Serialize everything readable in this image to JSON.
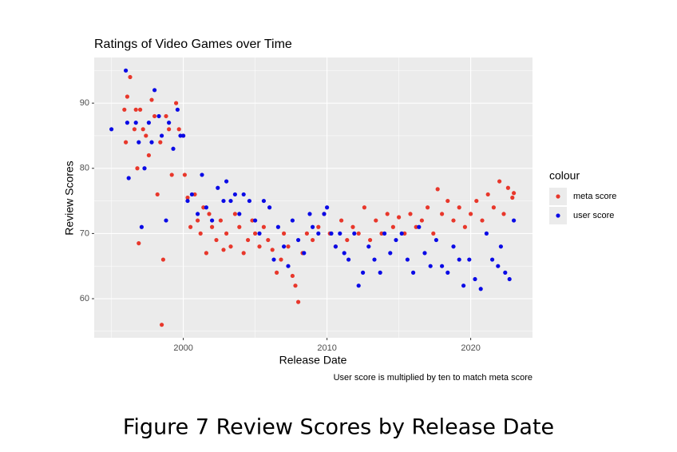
{
  "chart_data": {
    "type": "scatter",
    "title": "Ratings of Video Games over Time",
    "x_label": "Release Date",
    "y_label": "Review Scores",
    "caption": "User score is multiplied by ten to match meta score",
    "legend_title": "colour",
    "legend_position": "right",
    "grid": true,
    "xlim": [
      1993.8,
      2024.3
    ],
    "ylim": [
      54,
      97
    ],
    "xticks": [
      2000,
      2010,
      2020
    ],
    "yticks": [
      60,
      70,
      80,
      90
    ],
    "series": [
      {
        "name": "meta score",
        "color": "#e8372b",
        "x": [
          1995.9,
          1996.0,
          1996.1,
          1996.3,
          1996.6,
          1996.7,
          1996.8,
          1996.9,
          1997.0,
          1997.2,
          1997.4,
          1997.6,
          1997.8,
          1998.0,
          1998.2,
          1998.4,
          1998.5,
          1998.6,
          1998.8,
          1999.0,
          1999.2,
          1999.5,
          1999.7,
          2000.0,
          2000.1,
          2000.3,
          2000.5,
          2000.8,
          2001.0,
          2001.2,
          2001.4,
          2001.6,
          2001.8,
          2002.0,
          2002.3,
          2002.6,
          2002.8,
          2003.0,
          2003.3,
          2003.6,
          2003.9,
          2004.2,
          2004.5,
          2004.8,
          2005.0,
          2005.3,
          2005.6,
          2005.9,
          2006.2,
          2006.5,
          2006.8,
          2007.0,
          2007.3,
          2007.6,
          2007.8,
          2008.0,
          2008.3,
          2008.6,
          2009.0,
          2009.4,
          2009.8,
          2010.2,
          2010.6,
          2011.0,
          2011.4,
          2011.8,
          2012.2,
          2012.6,
          2013.0,
          2013.4,
          2013.8,
          2014.2,
          2014.6,
          2015.0,
          2015.4,
          2015.8,
          2016.2,
          2016.6,
          2017.0,
          2017.4,
          2017.7,
          2018.0,
          2018.4,
          2018.8,
          2019.2,
          2019.6,
          2020.0,
          2020.4,
          2020.8,
          2021.2,
          2021.6,
          2022.0,
          2022.3,
          2022.6,
          2022.9,
          2023.0
        ],
        "values": [
          89,
          84,
          91,
          94,
          86,
          89,
          80,
          68.5,
          89,
          86,
          85,
          82,
          90.5,
          88,
          76,
          84,
          56,
          66,
          88,
          86,
          79,
          90,
          86,
          85,
          79,
          75.5,
          71,
          76,
          72,
          70,
          74,
          67,
          73,
          71,
          69,
          72,
          67.5,
          70,
          68,
          73,
          71,
          67,
          69,
          72,
          70,
          68,
          71,
          69,
          67.5,
          64,
          66,
          70,
          68,
          63.5,
          62,
          59.5,
          67,
          70,
          69,
          71,
          73,
          70,
          68,
          72,
          69,
          71,
          70,
          74,
          69,
          72,
          70,
          73,
          71,
          72.5,
          70,
          73,
          71,
          72,
          74,
          70,
          76.8,
          73,
          75,
          72,
          74,
          71,
          73,
          75,
          72,
          76,
          74,
          78,
          73,
          77,
          75.5,
          76.2
        ]
      },
      {
        "name": "user score",
        "color": "#0a0ae6",
        "x": [
          1995.0,
          1996.0,
          1996.1,
          1996.2,
          1996.7,
          1996.9,
          1997.1,
          1997.3,
          1997.6,
          1997.8,
          1998.0,
          1998.3,
          1998.5,
          1998.8,
          1999.0,
          1999.3,
          1999.6,
          1999.8,
          2000.0,
          2000.3,
          2000.6,
          2001.0,
          2001.3,
          2001.6,
          2002.0,
          2002.4,
          2002.8,
          2003.0,
          2003.3,
          2003.6,
          2003.9,
          2004.2,
          2004.6,
          2005.0,
          2005.3,
          2005.6,
          2006.0,
          2006.3,
          2006.6,
          2007.0,
          2007.3,
          2007.6,
          2008.0,
          2008.4,
          2008.8,
          2009.0,
          2009.4,
          2009.8,
          2010.0,
          2010.3,
          2010.6,
          2010.9,
          2011.2,
          2011.5,
          2011.9,
          2012.2,
          2012.5,
          2012.9,
          2013.3,
          2013.7,
          2014.0,
          2014.4,
          2014.8,
          2015.2,
          2015.6,
          2016.0,
          2016.4,
          2016.8,
          2017.2,
          2017.6,
          2018.0,
          2018.4,
          2018.8,
          2019.2,
          2019.5,
          2019.9,
          2020.3,
          2020.7,
          2021.1,
          2021.5,
          2021.9,
          2022.1,
          2022.4,
          2022.7,
          2023.0
        ],
        "values": [
          86,
          95,
          87,
          78.5,
          87,
          84,
          71,
          80,
          87,
          84,
          92,
          88,
          85,
          72,
          87,
          83,
          89,
          85,
          85,
          75,
          76,
          73,
          79,
          74,
          72,
          77,
          75,
          78,
          75,
          76,
          73,
          76,
          75,
          72,
          70,
          75,
          74,
          66,
          71,
          68,
          65,
          72,
          69,
          67,
          73,
          71,
          70,
          73,
          74,
          70,
          68,
          70,
          67,
          66,
          70,
          62,
          64,
          68,
          66,
          64,
          70,
          67,
          69,
          70,
          66,
          64,
          71,
          67,
          65,
          69,
          65,
          64,
          68,
          66,
          62,
          66,
          63,
          61.5,
          70,
          66,
          65,
          68,
          64,
          63,
          72
        ]
      }
    ]
  },
  "figure_caption": "Figure 7 Review Scores by Release Date"
}
